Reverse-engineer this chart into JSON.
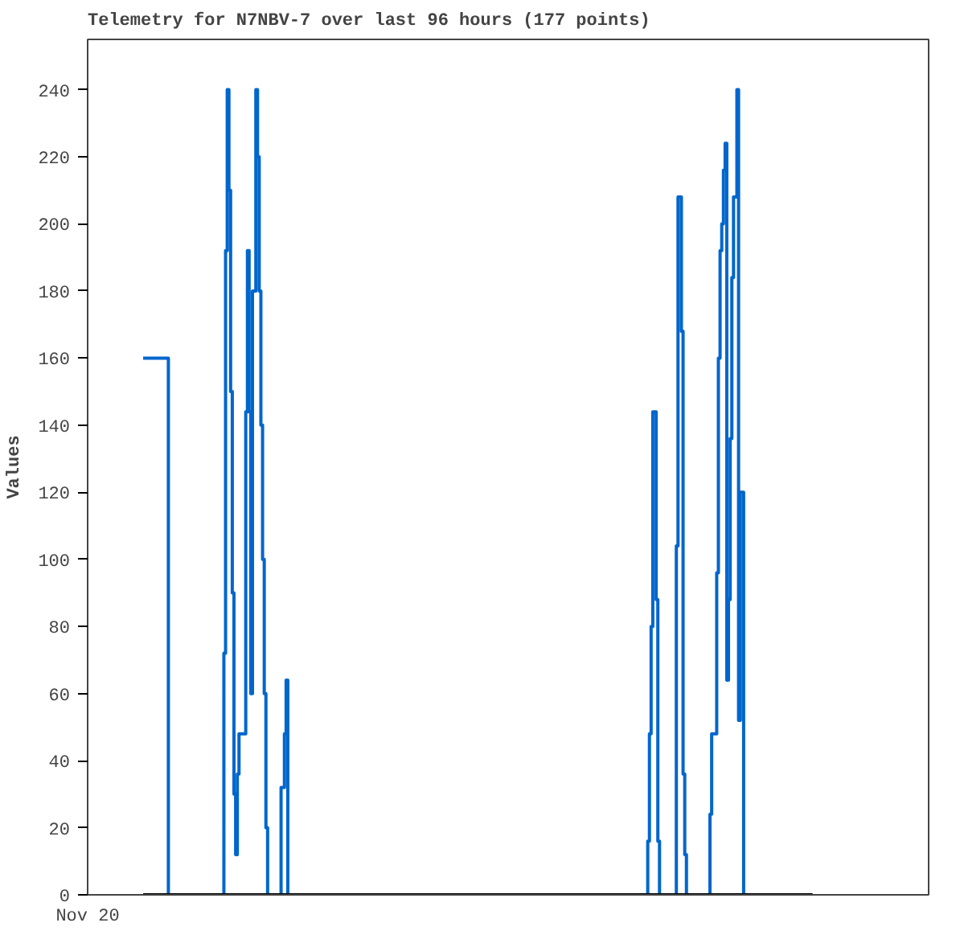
{
  "chart_data": {
    "type": "step",
    "title": "Telemetry for N7NBV-7 over last 96 hours (177 points)",
    "ylabel": "Values",
    "annotations": [
      "Nov 20"
    ],
    "tick_labels": "y",
    "ylim": [
      0,
      255
    ],
    "yticks": [
      0,
      20,
      40,
      60,
      80,
      100,
      120,
      140,
      160,
      180,
      200,
      220,
      240
    ],
    "grid": false,
    "categories": [
      null,
      null,
      null,
      null,
      null,
      null,
      null,
      null,
      null,
      null,
      null,
      null,
      null,
      null,
      null,
      null,
      null,
      null,
      null,
      null,
      null,
      null,
      null,
      null,
      null,
      null,
      null,
      null,
      null,
      null,
      null,
      null,
      null,
      null,
      null,
      null,
      null,
      null,
      null,
      null,
      null,
      null,
      null,
      null,
      null,
      null,
      null,
      null,
      null,
      null,
      null,
      null,
      null,
      null,
      null,
      null,
      null,
      null,
      null,
      null,
      null,
      null,
      null,
      null,
      null,
      null,
      null,
      null,
      null,
      null,
      null,
      null,
      null,
      null,
      null,
      null,
      null,
      null,
      null,
      null,
      null,
      null,
      null,
      null,
      null,
      null,
      null,
      null,
      null,
      null,
      null,
      null,
      null,
      null,
      null,
      null,
      null,
      null,
      null,
      null,
      null,
      null,
      null,
      null,
      null,
      null,
      null,
      null,
      null,
      null,
      null,
      null,
      null,
      null,
      null,
      null,
      null,
      null,
      null,
      null,
      null,
      null,
      null,
      null,
      null,
      null,
      null,
      null,
      null,
      null,
      null,
      null,
      null,
      null,
      null,
      null,
      null,
      null,
      null,
      null,
      null,
      null,
      null,
      null,
      null,
      null,
      null,
      null,
      null,
      null,
      null,
      null,
      null,
      null,
      null,
      null,
      null,
      null,
      null,
      null,
      null,
      null,
      null,
      null,
      null,
      null,
      null,
      null,
      null,
      null,
      null,
      null,
      null,
      null,
      null,
      null,
      null,
      null,
      null,
      null,
      null,
      null,
      null,
      null,
      null,
      null,
      null,
      null,
      null,
      null,
      null,
      null,
      null,
      null,
      null,
      null,
      null,
      null,
      null,
      null,
      null,
      null,
      null,
      null,
      null,
      null,
      null,
      null,
      null,
      null,
      null,
      null,
      null,
      null,
      null,
      null,
      null,
      null,
      null,
      null,
      null,
      null,
      null,
      null,
      null,
      null,
      null,
      null,
      null,
      null,
      null,
      null,
      null,
      null,
      null,
      null,
      null,
      null,
      null,
      null,
      null,
      null,
      null,
      null,
      null,
      null,
      null,
      null,
      null,
      null,
      null,
      null,
      null,
      null,
      null,
      null,
      null,
      null,
      null,
      null,
      null,
      null,
      null,
      null,
      null,
      null,
      null,
      null,
      null,
      null,
      null,
      null,
      null,
      null,
      null,
      null,
      null,
      null,
      null,
      null,
      null,
      null,
      null,
      null,
      null,
      null,
      null,
      null,
      null,
      null,
      null,
      null,
      null,
      null,
      null,
      null,
      null,
      null,
      null,
      null,
      null,
      null,
      null,
      null,
      null,
      null,
      null,
      null,
      null,
      null,
      null,
      null,
      null,
      null,
      null,
      null,
      null,
      null,
      null,
      null,
      null,
      null,
      null,
      null,
      null,
      null,
      null,
      null,
      null,
      null,
      null,
      null,
      null,
      null,
      null,
      null,
      null,
      null,
      null,
      null,
      null,
      null,
      null,
      null,
      null,
      null,
      null,
      null,
      null,
      null,
      null,
      null,
      null,
      null,
      null,
      null,
      null,
      null,
      null,
      null,
      null,
      null,
      null,
      null,
      null,
      null,
      null,
      null,
      null,
      null,
      null,
      null,
      null,
      null,
      null,
      null,
      null,
      null,
      null,
      null,
      null,
      null,
      null,
      null,
      null,
      null,
      null,
      null,
      null,
      null,
      null,
      null,
      null,
      null,
      null,
      null,
      null,
      null,
      null
    ],
    "series": [
      {
        "color": "#0066cc",
        "values": [
          160,
          160,
          160,
          160,
          160,
          160,
          160,
          160,
          160,
          160,
          160,
          160,
          160,
          160,
          160,
          0,
          null,
          null,
          null,
          null,
          null,
          null,
          null,
          null,
          null,
          null,
          null,
          null,
          null,
          null,
          null,
          null,
          null,
          null,
          null,
          null,
          null,
          null,
          null,
          null,
          null,
          null,
          null,
          null,
          null,
          null,
          null,
          0,
          72,
          192,
          240,
          210,
          150,
          90,
          30,
          12,
          36,
          48,
          48,
          48,
          48,
          144,
          192,
          144,
          60,
          180,
          180,
          240,
          220,
          180,
          140,
          100,
          60,
          20,
          0,
          null,
          null,
          null,
          null,
          null,
          null,
          0,
          32,
          32,
          48,
          64,
          0,
          null,
          null,
          null,
          null,
          null,
          null,
          null,
          null,
          null,
          null,
          null,
          null,
          null,
          null,
          null,
          null,
          null,
          null,
          null,
          null,
          null,
          null,
          null,
          null,
          null,
          null,
          null,
          null,
          null,
          null,
          null,
          null,
          null,
          null,
          null,
          null,
          null,
          null,
          null,
          null,
          null,
          null,
          null,
          null,
          null,
          null,
          null,
          null,
          null,
          null,
          null,
          null,
          null,
          null,
          null,
          null,
          null,
          null,
          null,
          null,
          null,
          null,
          null,
          null,
          null,
          null,
          null,
          null,
          null,
          null,
          null,
          null,
          null,
          null,
          null,
          null,
          null,
          null,
          null,
          null,
          null,
          null,
          null,
          null,
          null,
          null,
          null,
          null,
          null,
          null,
          null,
          null,
          null,
          null,
          null,
          null,
          null,
          null,
          null,
          null,
          null,
          null,
          null,
          null,
          null,
          null,
          null,
          null,
          null,
          null,
          null,
          null,
          null,
          null,
          null,
          null,
          null,
          null,
          null,
          null,
          null,
          null,
          null,
          null,
          null,
          null,
          null,
          null,
          null,
          null,
          null,
          null,
          null,
          null,
          null,
          null,
          null,
          null,
          null,
          null,
          null,
          null,
          null,
          null,
          null,
          null,
          null,
          null,
          null,
          null,
          null,
          null,
          null,
          null,
          null,
          null,
          null,
          null,
          null,
          null,
          null,
          null,
          null,
          null,
          null,
          null,
          null,
          null,
          null,
          null,
          null,
          null,
          null,
          null,
          null,
          null,
          null,
          null,
          null,
          null,
          null,
          null,
          null,
          null,
          null,
          null,
          null,
          null,
          null,
          null,
          null,
          null,
          null,
          null,
          null,
          null,
          null,
          null,
          null,
          null,
          null,
          null,
          null,
          null,
          null,
          null,
          null,
          null,
          null,
          null,
          null,
          null,
          0,
          16,
          48,
          80,
          144,
          144,
          88,
          16,
          0,
          null,
          null,
          null,
          null,
          null,
          null,
          null,
          null,
          0,
          104,
          208,
          208,
          168,
          36,
          12,
          0,
          null,
          null,
          null,
          null,
          null,
          null,
          null,
          null,
          null,
          null,
          null,
          null,
          0,
          24,
          48,
          48,
          48,
          96,
          160,
          192,
          200,
          216,
          224,
          64,
          88,
          136,
          184,
          208,
          208,
          240,
          52,
          120,
          120,
          0,
          null,
          null,
          null,
          null,
          null,
          null,
          null,
          null,
          null,
          null,
          null,
          null,
          null,
          null,
          null,
          null,
          null,
          null,
          null,
          null,
          null,
          null,
          null,
          null,
          null,
          null,
          null,
          null,
          null,
          null,
          null,
          null,
          null,
          null,
          null,
          null,
          null,
          null,
          null,
          null,
          null
        ]
      },
      {
        "color": "#000000",
        "values": [
          0,
          0,
          0,
          0,
          0,
          0,
          0,
          0,
          0,
          0,
          0,
          0,
          0,
          0,
          0,
          0,
          0,
          0,
          0,
          0,
          0,
          0,
          0,
          0,
          0,
          0,
          0,
          0,
          0,
          0,
          0,
          0,
          0,
          0,
          0,
          0,
          0,
          0,
          0,
          0,
          0,
          0,
          0,
          0,
          0,
          0,
          0,
          0,
          0,
          0,
          0,
          0,
          0,
          0,
          0,
          0,
          0,
          0,
          0,
          0,
          0,
          0,
          0,
          0,
          0,
          0,
          0,
          0,
          0,
          0,
          0,
          0,
          0,
          0,
          0,
          0,
          0,
          0,
          0,
          0,
          0,
          0,
          0,
          0,
          0,
          0,
          0,
          0,
          0,
          0,
          0,
          0,
          0,
          0,
          0,
          0,
          0,
          0,
          0,
          0,
          0,
          0,
          0,
          0,
          0,
          0,
          0,
          0,
          0,
          0,
          0,
          0,
          0,
          0,
          0,
          0,
          0,
          0,
          0,
          0,
          0,
          0,
          0,
          0,
          0,
          0,
          0,
          0,
          0,
          0,
          0,
          0,
          0,
          0,
          0,
          0,
          0,
          0,
          0,
          0,
          0,
          0,
          0,
          0,
          0,
          0,
          0,
          0,
          0,
          0,
          0,
          0,
          0,
          0,
          0,
          0,
          0,
          0,
          0,
          0,
          0,
          0,
          0,
          0,
          0,
          0,
          0,
          0,
          0,
          0,
          0,
          0,
          0,
          0,
          0,
          0,
          0,
          0,
          0,
          0,
          0,
          0,
          0,
          0,
          0,
          0,
          0,
          0,
          0,
          0,
          0,
          0,
          0,
          0,
          0,
          0,
          0,
          0,
          0,
          0,
          0,
          0,
          0,
          0,
          0,
          0,
          0,
          0,
          0,
          0,
          0,
          0,
          0,
          0,
          0,
          0,
          0,
          0,
          0,
          0,
          0,
          0,
          0,
          0,
          0,
          0,
          0,
          0,
          0,
          0,
          0,
          0,
          0,
          0,
          0,
          0,
          0,
          0,
          0,
          0,
          0,
          0,
          0,
          0,
          0,
          0,
          0,
          0,
          0,
          0,
          0,
          0,
          0,
          0,
          0,
          0,
          0,
          0,
          0,
          0,
          0,
          0,
          0,
          0,
          0,
          0,
          0,
          0,
          0,
          0,
          0,
          0,
          0,
          0,
          0,
          0,
          0,
          0,
          0,
          0,
          0,
          0,
          0,
          0,
          0,
          0,
          0,
          0,
          0,
          0,
          0,
          0,
          0,
          0,
          0,
          0,
          0,
          0,
          0,
          0,
          0,
          0,
          0,
          0,
          0,
          0,
          0,
          0,
          0,
          0,
          0,
          0,
          0,
          0,
          0,
          0,
          0,
          0,
          0,
          0,
          0,
          0,
          0,
          0,
          0,
          0,
          0,
          0,
          0,
          0,
          0,
          0,
          0,
          0,
          0,
          0,
          0,
          0,
          0,
          0,
          0,
          0,
          0,
          0,
          0,
          0,
          0,
          0,
          0,
          0,
          0,
          0,
          0,
          0,
          0,
          0,
          0,
          0,
          0,
          0,
          0,
          0,
          0,
          0,
          0,
          0,
          0,
          0,
          0,
          0,
          0,
          0,
          0,
          0,
          0,
          0,
          0,
          0,
          0,
          0,
          0,
          0,
          0,
          0,
          0,
          0,
          0,
          0,
          0,
          0,
          0,
          0,
          0,
          0,
          0,
          0,
          0,
          0,
          0
        ]
      }
    ]
  }
}
